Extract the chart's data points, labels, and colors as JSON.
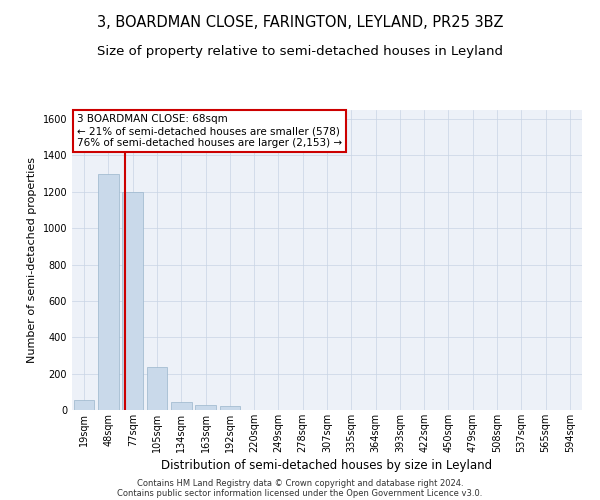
{
  "title1": "3, BOARDMAN CLOSE, FARINGTON, LEYLAND, PR25 3BZ",
  "title2": "Size of property relative to semi-detached houses in Leyland",
  "xlabel": "Distribution of semi-detached houses by size in Leyland",
  "ylabel": "Number of semi-detached properties",
  "categories": [
    "19sqm",
    "48sqm",
    "77sqm",
    "105sqm",
    "134sqm",
    "163sqm",
    "192sqm",
    "220sqm",
    "249sqm",
    "278sqm",
    "307sqm",
    "335sqm",
    "364sqm",
    "393sqm",
    "422sqm",
    "450sqm",
    "479sqm",
    "508sqm",
    "537sqm",
    "565sqm",
    "594sqm"
  ],
  "values": [
    55,
    1300,
    1200,
    235,
    42,
    30,
    20,
    0,
    0,
    0,
    0,
    0,
    0,
    0,
    0,
    0,
    0,
    0,
    0,
    0,
    0
  ],
  "bar_color": "#c9d9ea",
  "bar_edge_color": "#9ab5cc",
  "property_label": "3 BOARDMAN CLOSE: 68sqm",
  "annotation_line1": "← 21% of semi-detached houses are smaller (578)",
  "annotation_line2": "76% of semi-detached houses are larger (2,153) →",
  "annotation_box_color": "#ffffff",
  "annotation_box_edge_color": "#cc0000",
  "vline_color": "#cc0000",
  "ylim_max": 1650,
  "yticks": [
    0,
    200,
    400,
    600,
    800,
    1000,
    1200,
    1400,
    1600
  ],
  "footnote1": "Contains HM Land Registry data © Crown copyright and database right 2024.",
  "footnote2": "Contains public sector information licensed under the Open Government Licence v3.0.",
  "background_color": "#ffffff",
  "plot_bg_color": "#edf1f8",
  "grid_color": "#c8d4e4",
  "title1_fontsize": 10.5,
  "title2_fontsize": 9.5,
  "xlabel_fontsize": 8.5,
  "ylabel_fontsize": 8,
  "tick_fontsize": 7,
  "annot_fontsize": 7.5,
  "footnote_fontsize": 6
}
